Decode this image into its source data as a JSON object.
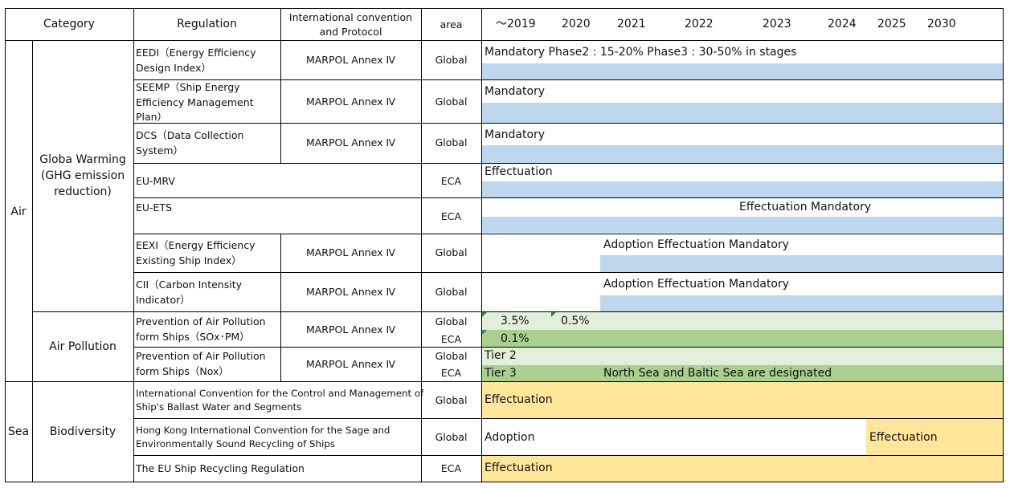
{
  "header": {
    "category": "Category",
    "regulation": "Regulation",
    "convention_line1": "International convention",
    "convention_line2": "and Protocol",
    "area": "area",
    "years": [
      "～2019",
      "2020",
      "2021",
      "2022",
      "2023",
      "2024",
      "2025",
      "2030"
    ]
  },
  "categories": {
    "air": "Air",
    "sea": "Sea",
    "global_warming_line1": "Globa Warming",
    "global_warming_line2": "(GHG emission",
    "global_warming_line3": "reduction)",
    "air_pollution": "Air Pollution",
    "biodiversity": "Biodiversity"
  },
  "rows": {
    "eedi": {
      "reg1": "EEDI（Energy Efficiency",
      "reg2": "Design Index）",
      "conv": "MARPOL Annex Ⅳ",
      "area": "Global",
      "timeline": "Mandatory  Phase2 : 15-20%   Phase3 : 30-50% in stages"
    },
    "seemp": {
      "reg1": "SEEMP（Ship Energy",
      "reg2": "Efficiency Management",
      "reg3": "Plan）",
      "conv": "MARPOL Annex Ⅳ",
      "area": "Global",
      "timeline": "Mandatory"
    },
    "dcs": {
      "reg1": "DCS（Data Collection",
      "reg2": "System）",
      "conv": "MARPOL Annex Ⅳ",
      "area": "Global",
      "timeline": "Mandatory"
    },
    "eumrv": {
      "reg1": "EU-MRV",
      "area": "ECA",
      "timeline": "Effectuation"
    },
    "euets": {
      "reg1": "EU-ETS",
      "area": "ECA",
      "timeline": "Effectuation   Mandatory"
    },
    "eexi": {
      "reg1": "EEXI（Energy Efficiency",
      "reg2": "Existing Ship Index）",
      "conv": "MARPOL Annex Ⅳ",
      "area": "Global",
      "timeline": "Adoption   Effectuation Mandatory"
    },
    "cii": {
      "reg1": "CII（Carbon Intensity",
      "reg2": "Indicator）",
      "conv": "MARPOL Annex Ⅳ",
      "area": "Global",
      "timeline": "Adoption   Effectuation Mandatory"
    },
    "sox": {
      "reg1": "Prevention of Air Pollution",
      "reg2": "form Ships（SOx･PM）",
      "conv": "MARPOL Annex Ⅳ",
      "area1": "Global",
      "area2": "ECA",
      "t1": "3.5%",
      "t2": "0.5%",
      "t3": "0.1%"
    },
    "nox": {
      "reg1": "Prevention of Air Pollution",
      "reg2": "form Ships（Nox）",
      "conv": "MARPOL Annex Ⅳ",
      "area1": "Global",
      "area2": "ECA",
      "t1": "Tier 2",
      "t2": "Tier 3",
      "t3": "North Sea and Baltic Sea are designated"
    },
    "ballast": {
      "reg1": "International Convention for the Control and Management of",
      "reg2": "Ship's Ballast Water and Segments",
      "area": "Global",
      "timeline": "Effectuation"
    },
    "hongkong": {
      "reg1": "Hong Kong International Convention for the Sage and",
      "reg2": "Environmentally Sound Recycling of Ships",
      "area": "Global",
      "t1": "Adoption",
      "t2": "Effectuation"
    },
    "eusrr": {
      "reg1": "The EU Ship Recycling Regulation",
      "area": "ECA",
      "timeline": "Effectuation"
    }
  },
  "colors": {
    "mandatory_bar": "#bdd7ee",
    "global_bar": "#e2efda",
    "eca_bar": "#a9d08e",
    "sea_bar": "#ffe699"
  }
}
